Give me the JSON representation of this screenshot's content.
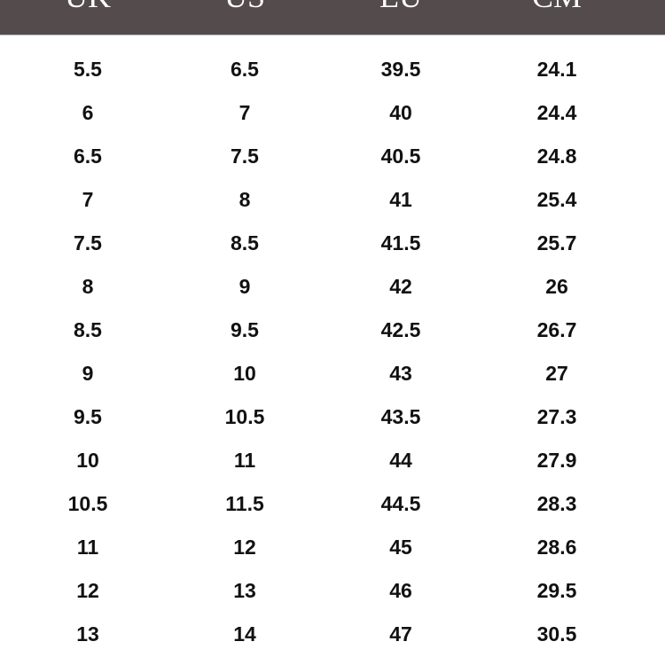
{
  "header": {
    "columns": [
      "UK",
      "US",
      "EU",
      "CM"
    ],
    "background": "#544c4c"
  },
  "rows": [
    [
      "5.5",
      "6.5",
      "39.5",
      "24.1"
    ],
    [
      "6",
      "7",
      "40",
      "24.4"
    ],
    [
      "6.5",
      "7.5",
      "40.5",
      "24.8"
    ],
    [
      "7",
      "8",
      "41",
      "25.4"
    ],
    [
      "7.5",
      "8.5",
      "41.5",
      "25.7"
    ],
    [
      "8",
      "9",
      "42",
      "26"
    ],
    [
      "8.5",
      "9.5",
      "42.5",
      "26.7"
    ],
    [
      "9",
      "10",
      "43",
      "27"
    ],
    [
      "9.5",
      "10.5",
      "43.5",
      "27.3"
    ],
    [
      "10",
      "11",
      "44",
      "27.9"
    ],
    [
      "10.5",
      "11.5",
      "44.5",
      "28.3"
    ],
    [
      "11",
      "12",
      "45",
      "28.6"
    ],
    [
      "12",
      "13",
      "46",
      "29.5"
    ],
    [
      "13",
      "14",
      "47",
      "30.5"
    ]
  ]
}
